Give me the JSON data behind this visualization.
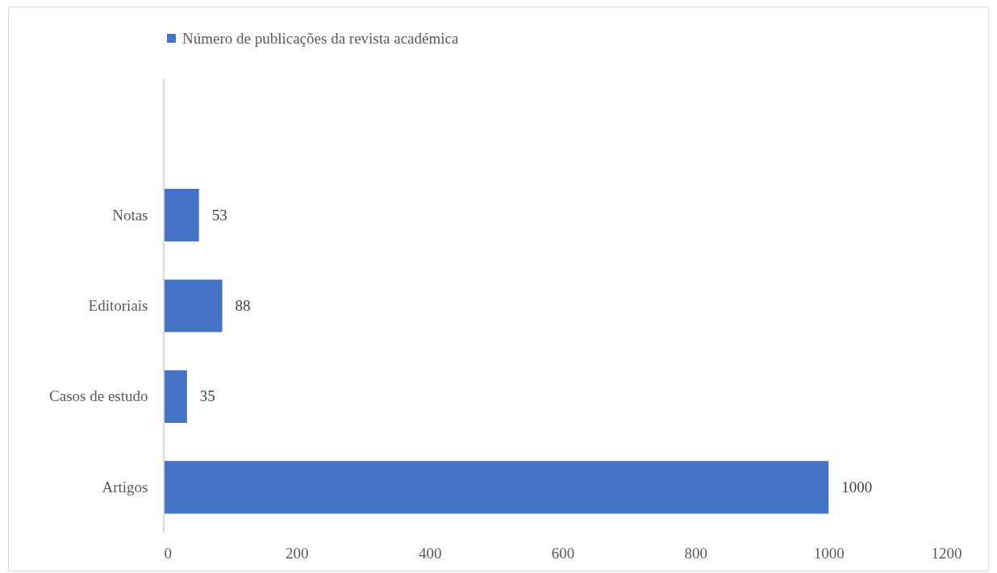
{
  "chart_data": {
    "type": "bar",
    "orientation": "horizontal",
    "categories": [
      null,
      "Notas",
      "Editoriais",
      "Casos de estudo",
      "Artigos"
    ],
    "series": [
      {
        "name": "Número de publicações da revista académica",
        "color": "#4472c4",
        "values": [
          null,
          53,
          88,
          35,
          1000
        ]
      }
    ],
    "xlim": [
      0,
      1200
    ],
    "xticks": [
      0,
      200,
      400,
      600,
      800,
      1000,
      1200
    ],
    "grid": false,
    "legend": "top",
    "data_labels": true
  }
}
